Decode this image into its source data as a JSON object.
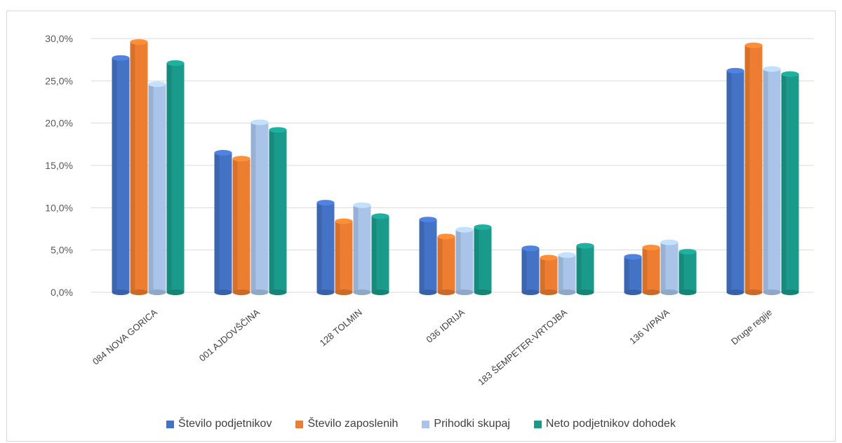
{
  "chart_data": {
    "type": "bar",
    "categories": [
      "084 NOVA GORICA",
      "001 AJDOVŠČINA",
      "128 TOLMIN",
      "036 IDRIJA",
      "183 ŠEMPETER-VRTOJBA",
      "136 VIPAVA",
      "Druge regije"
    ],
    "series": [
      {
        "name": "Število podjetnikov",
        "color": "#4472c4",
        "values": [
          27.7,
          16.5,
          10.6,
          8.6,
          5.2,
          4.2,
          26.2
        ]
      },
      {
        "name": "Število zaposlenih",
        "color": "#ed7d31",
        "values": [
          29.6,
          15.8,
          8.4,
          6.6,
          4.1,
          5.3,
          29.2
        ]
      },
      {
        "name": "Prihodki skupaj",
        "color": "#a9c4e8",
        "values": [
          24.6,
          20.1,
          10.3,
          7.4,
          4.4,
          5.9,
          26.4
        ]
      },
      {
        "name": "Neto podjetnikov dohodek",
        "color": "#1a9a8a",
        "values": [
          27.1,
          19.2,
          9.0,
          7.7,
          5.5,
          4.8,
          25.8
        ]
      }
    ],
    "yticks": [
      "0,0%",
      "5,0%",
      "10,0%",
      "15,0%",
      "20,0%",
      "25,0%",
      "30,0%"
    ],
    "ylim": [
      0,
      30
    ],
    "grid": true,
    "legend_position": "bottom"
  }
}
